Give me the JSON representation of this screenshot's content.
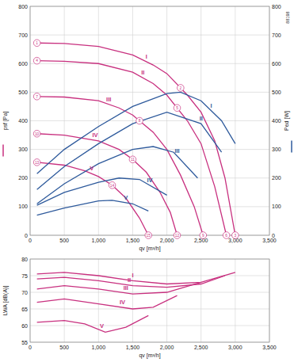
{
  "chart_data": [
    {
      "type": "line",
      "subtitle": "88198",
      "xlabel": "qv [m³/h]",
      "ylabel": "psf [Pa]",
      "y2label": "Ped [W]",
      "xlim": [
        0,
        3500
      ],
      "ylim": [
        0,
        800
      ],
      "y2lim": [
        0,
        800
      ],
      "xticks": [
        0,
        500,
        {
          "value": 1000,
          "label": "1,000"
        },
        {
          "value": 1500,
          "label": "1,500"
        },
        {
          "value": 2000,
          "label": "2,000"
        },
        {
          "value": 2500,
          "label": "2,500"
        },
        {
          "value": 3000,
          "label": "3,000"
        },
        {
          "value": 3500,
          "label": "3,500"
        }
      ],
      "yticks": [
        0,
        100,
        200,
        300,
        400,
        500,
        600,
        700,
        800
      ],
      "y2ticks": [
        0,
        100,
        200,
        300,
        400,
        500,
        600,
        700,
        800
      ],
      "grid": true,
      "series": [
        {
          "name": "I",
          "color": "#c8307f",
          "label_x": 1700,
          "x": [
            100,
            500,
            1000,
            1500,
            1800,
            2000,
            2300,
            2500,
            2700,
            2850,
            3000
          ],
          "values": [
            672,
            670,
            660,
            630,
            595,
            565,
            490,
            430,
            330,
            200,
            0
          ]
        },
        {
          "name": "II",
          "color": "#c8307f",
          "label_x": 1650,
          "x": [
            100,
            500,
            1000,
            1500,
            1800,
            2000,
            2300,
            2500,
            2700,
            2870
          ],
          "values": [
            610,
            608,
            600,
            570,
            530,
            490,
            400,
            320,
            170,
            0
          ]
        },
        {
          "name": "III",
          "color": "#c8307f",
          "label_x": 1150,
          "x": [
            100,
            500,
            1000,
            1300,
            1500,
            1800,
            2000,
            2200,
            2400,
            2530
          ],
          "values": [
            485,
            483,
            470,
            445,
            420,
            360,
            300,
            210,
            100,
            0
          ]
        },
        {
          "name": "IV",
          "color": "#c8307f",
          "label_x": 950,
          "x": [
            100,
            500,
            1000,
            1300,
            1500,
            1700,
            1900,
            2050,
            2150
          ],
          "values": [
            355,
            350,
            330,
            300,
            265,
            220,
            150,
            80,
            0
          ]
        },
        {
          "name": "V",
          "color": "#c8307f",
          "label_x": 900,
          "x": [
            100,
            500,
            800,
            1000,
            1200,
            1400,
            1600,
            1730
          ],
          "values": [
            255,
            245,
            225,
            205,
            175,
            130,
            60,
            0
          ]
        },
        {
          "name": "I",
          "color": "#2e5a9c",
          "axis": "y2",
          "label_x": 2650,
          "x": [
            100,
            500,
            1000,
            1500,
            2000,
            2200,
            2500,
            2800,
            3000
          ],
          "values": [
            215,
            300,
            380,
            450,
            495,
            500,
            470,
            400,
            320
          ]
        },
        {
          "name": "II",
          "color": "#2e5a9c",
          "axis": "y2",
          "label_x": 2500,
          "x": [
            100,
            500,
            1000,
            1500,
            2000,
            2500,
            2800
          ],
          "values": [
            160,
            240,
            320,
            390,
            430,
            390,
            290
          ]
        },
        {
          "name": "III",
          "color": "#2e5a9c",
          "axis": "y2",
          "label_x": 2150,
          "x": [
            100,
            500,
            1000,
            1500,
            1800,
            2100,
            2450
          ],
          "values": [
            110,
            180,
            250,
            300,
            310,
            290,
            200
          ]
        },
        {
          "name": "IV",
          "color": "#2e5a9c",
          "axis": "y2",
          "label_x": 1750,
          "x": [
            100,
            500,
            1000,
            1300,
            1600,
            2000
          ],
          "values": [
            105,
            150,
            185,
            200,
            195,
            140
          ]
        },
        {
          "name": "V",
          "color": "#2e5a9c",
          "axis": "y2",
          "label_x": 1400,
          "x": [
            100,
            500,
            1000,
            1200,
            1500,
            1730
          ],
          "values": [
            70,
            95,
            120,
            122,
            110,
            85
          ]
        }
      ],
      "annotations": [
        {
          "text": "1",
          "x": 100,
          "y": 672
        },
        {
          "text": "2",
          "x": 2200,
          "y": 515
        },
        {
          "text": "3",
          "x": 3000,
          "y": 0
        },
        {
          "text": "4",
          "x": 100,
          "y": 610
        },
        {
          "text": "5",
          "x": 2150,
          "y": 445
        },
        {
          "text": "6",
          "x": 2870,
          "y": 0
        },
        {
          "text": "7",
          "x": 100,
          "y": 485
        },
        {
          "text": "8",
          "x": 1600,
          "y": 400
        },
        {
          "text": "9",
          "x": 2530,
          "y": 0
        },
        {
          "text": "10",
          "x": 100,
          "y": 355
        },
        {
          "text": "11",
          "x": 1500,
          "y": 265
        },
        {
          "text": "12",
          "x": 2150,
          "y": 0
        },
        {
          "text": "13",
          "x": 100,
          "y": 255
        },
        {
          "text": "14",
          "x": 1200,
          "y": 175
        },
        {
          "text": "15",
          "x": 1730,
          "y": 0
        }
      ]
    },
    {
      "type": "line",
      "xlabel": "qv [m³/h]",
      "ylabel": "LWA [dB(A)]",
      "xlim": [
        0,
        3500
      ],
      "ylim": [
        55,
        80
      ],
      "xticks": [
        0,
        500,
        {
          "value": 1000,
          "label": "1,000"
        },
        {
          "value": 1500,
          "label": "1,500"
        },
        {
          "value": 2000,
          "label": "2,000"
        },
        {
          "value": 2500,
          "label": "2,500"
        },
        {
          "value": 3000,
          "label": "3,000"
        },
        {
          "value": 3500,
          "label": "3,500"
        }
      ],
      "yticks": [
        55,
        60,
        65,
        70,
        75,
        80
      ],
      "grid": true,
      "series": [
        {
          "name": "I",
          "color": "#c8307f",
          "label_x": 1500,
          "x": [
            100,
            500,
            1000,
            1500,
            2000,
            2500,
            3000
          ],
          "values": [
            75.5,
            76,
            75,
            73.5,
            72.5,
            73,
            76
          ]
        },
        {
          "name": "II",
          "color": "#c8307f",
          "label_x": 1450,
          "x": [
            100,
            500,
            1000,
            1500,
            2000,
            2500,
            2850
          ],
          "values": [
            74,
            74.5,
            73.5,
            72,
            71.5,
            72.5,
            75
          ]
        },
        {
          "name": "III",
          "color": "#c8307f",
          "label_x": 1400,
          "x": [
            100,
            500,
            1000,
            1500,
            2000,
            2500
          ],
          "values": [
            71,
            72,
            71,
            69.5,
            70,
            73
          ]
        },
        {
          "name": "IV",
          "color": "#c8307f",
          "label_x": 1350,
          "x": [
            100,
            500,
            1000,
            1500,
            1800,
            2150
          ],
          "values": [
            67,
            68,
            66.5,
            65,
            65.5,
            69
          ]
        },
        {
          "name": "V",
          "color": "#c8307f",
          "label_x": 1050,
          "x": [
            100,
            500,
            800,
            1100,
            1400,
            1730
          ],
          "values": [
            61,
            61.5,
            60.5,
            58,
            59.5,
            63
          ]
        }
      ]
    }
  ]
}
